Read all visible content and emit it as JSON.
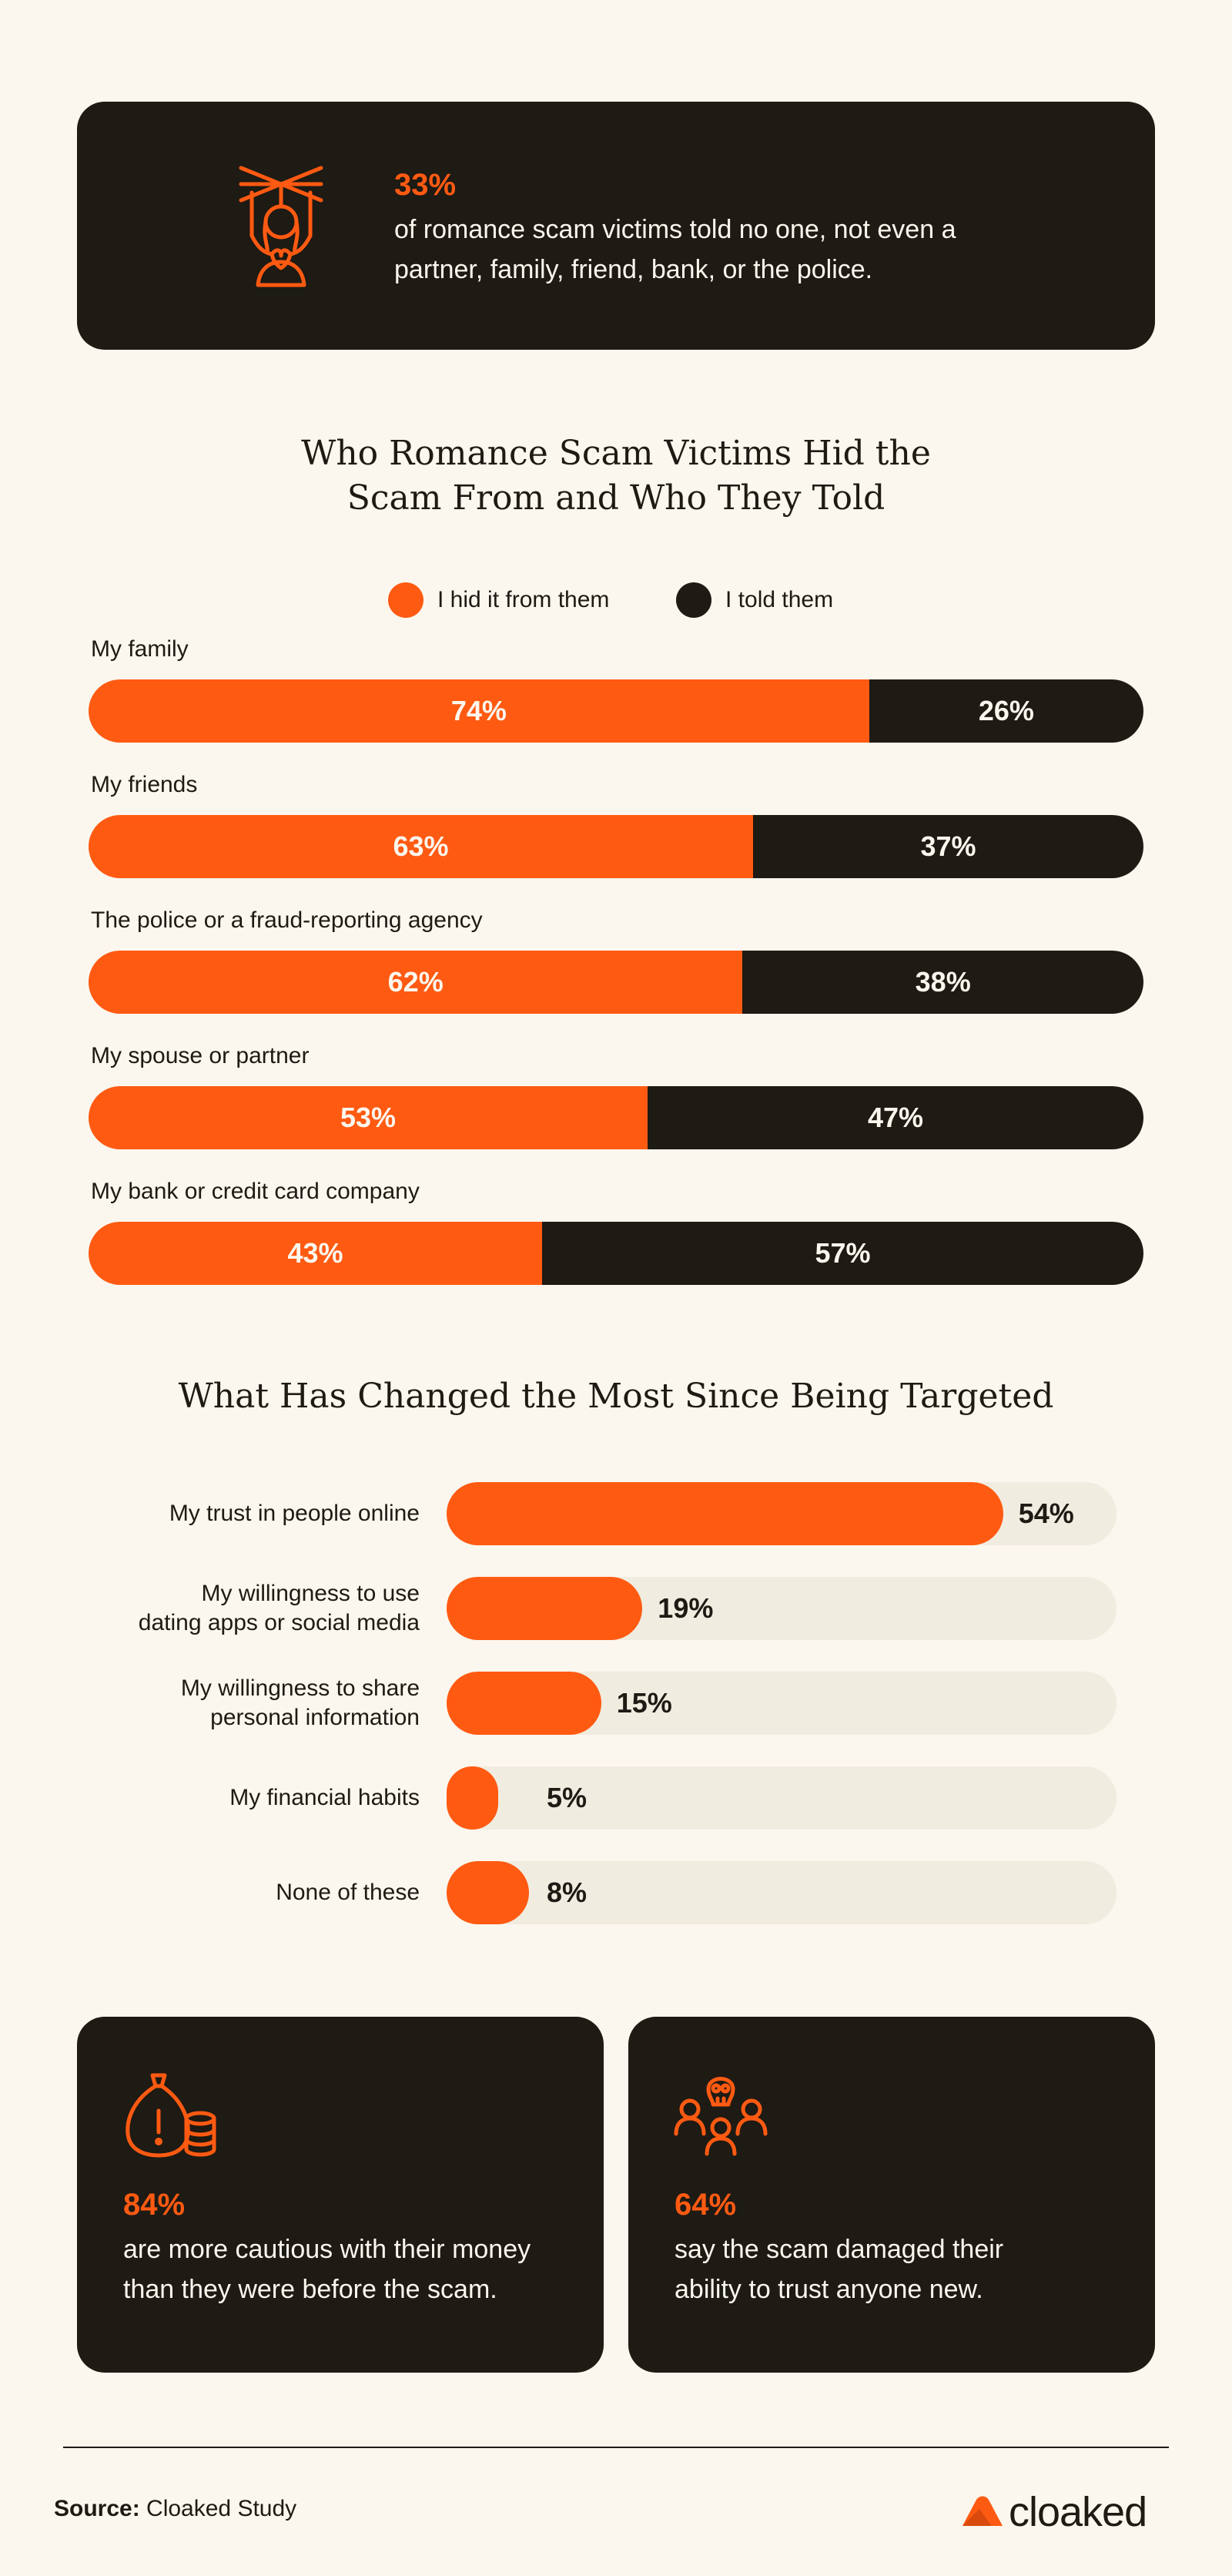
{
  "top_card": {
    "pct": "33%",
    "text": "of romance scam victims told no one, not even a partner, family, friend, bank, or the police.",
    "icon": "puppet-person-icon"
  },
  "chart1_title": "Who Romance Scam Victims Hid the Scam From and Who They Told",
  "legend": {
    "hid": "I hid it from them",
    "told": "I told them"
  },
  "colors": {
    "accent": "#FF5A12",
    "dark": "#1E1A14",
    "background": "#FBF7EE",
    "track": "#F1ECE0"
  },
  "chart2_title": "What Has Changed the Most Since Being Targeted",
  "chart_data": [
    {
      "type": "bar",
      "orientation": "horizontal",
      "stacked": true,
      "title": "Who Romance Scam Victims Hid the Scam From and Who They Told",
      "categories": [
        "My family",
        "My friends",
        "The police or a fraud-reporting agency",
        "My spouse or partner",
        "My bank or credit card company"
      ],
      "series": [
        {
          "name": "I hid it from them",
          "values": [
            74,
            63,
            62,
            53,
            43
          ],
          "labels": [
            "74%",
            "63%",
            "62%",
            "53%",
            "43%"
          ]
        },
        {
          "name": "I told them",
          "values": [
            26,
            37,
            38,
            47,
            57
          ],
          "labels": [
            "26%",
            "37%",
            "38%",
            "47%",
            "57%"
          ]
        }
      ],
      "xlim": [
        0,
        100
      ],
      "legend": "top-center"
    },
    {
      "type": "bar",
      "orientation": "horizontal",
      "title": "What Has Changed the Most Since Being Targeted",
      "categories": [
        "My trust in people online",
        "My willingness to use dating apps or social media",
        "My willingness to share personal information",
        "My financial habits",
        "None of these"
      ],
      "category_lines": [
        [
          "My trust in people online"
        ],
        [
          "My willingness to use",
          "dating apps or social media"
        ],
        [
          "My willingness to share",
          "personal information"
        ],
        [
          "My financial habits"
        ],
        [
          "None of these"
        ]
      ],
      "values": [
        54,
        19,
        15,
        5,
        8
      ],
      "labels": [
        "54%",
        "19%",
        "15%",
        "5%",
        "8%"
      ],
      "xlim": [
        0,
        65
      ]
    }
  ],
  "bottom_cards": [
    {
      "pct": "84%",
      "line1": "are more cautious with their money",
      "line2": "than they were before the scam.",
      "icon": "money-bag-coins-icon"
    },
    {
      "pct": "64%",
      "line1": "say the scam damaged their",
      "line2": "ability to trust anyone new.",
      "icon": "skull-group-icon"
    }
  ],
  "source": {
    "label": "Source:",
    "text": "Cloaked Study"
  },
  "logo": {
    "text": "cloaked",
    "icon": "cloaked-logo-icon"
  }
}
